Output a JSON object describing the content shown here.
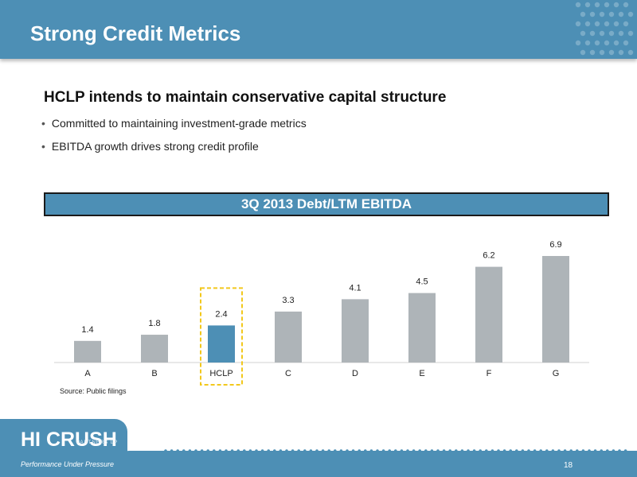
{
  "header": {
    "title": "Strong Credit Metrics"
  },
  "content": {
    "heading": "HCLP intends to maintain conservative capital structure",
    "bullets": [
      "Committed to maintaining investment-grade metrics",
      "EBITDA growth drives strong credit profile"
    ]
  },
  "chart_data": {
    "type": "bar",
    "title": "3Q 2013 Debt/LTM EBITDA",
    "categories": [
      "A",
      "B",
      "HCLP",
      "C",
      "D",
      "E",
      "F",
      "G"
    ],
    "values": [
      1.4,
      1.8,
      2.4,
      3.3,
      4.1,
      4.5,
      6.2,
      6.9
    ],
    "highlight": "HCLP",
    "colors": {
      "bar": "#aeb4b8",
      "highlight_bar": "#4d8fb5",
      "highlight_border": "#f2c81c"
    },
    "ylim": [
      0,
      6.9
    ],
    "xlabel": "",
    "ylabel": "",
    "grid": false
  },
  "source": "Source: Public filings",
  "footer": {
    "logo": "HI CRUSH",
    "logo_sub": "PARTNERS LP",
    "tagline": "Performance Under Pressure",
    "page_number": "18"
  },
  "theme": {
    "accent": "#4d8fb5"
  }
}
